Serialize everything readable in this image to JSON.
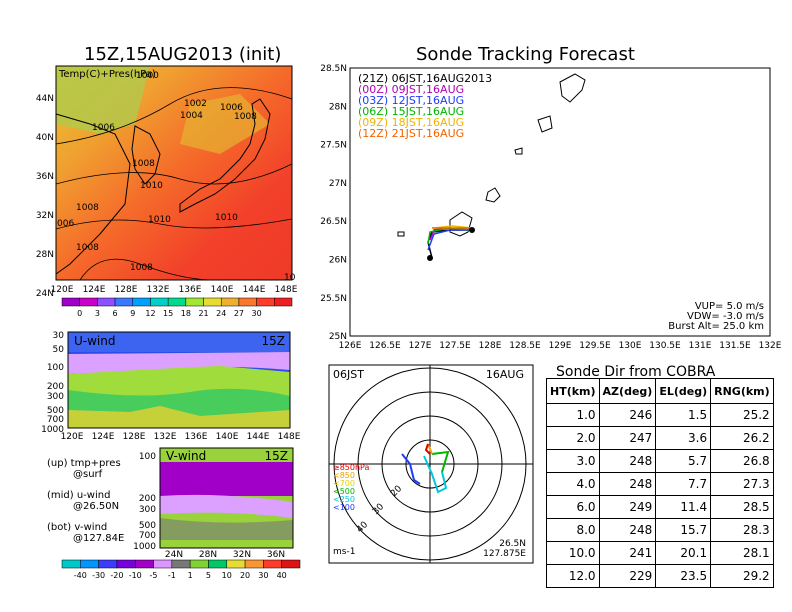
{
  "left": {
    "title": "15Z,15AUG2013 (init)",
    "map_label": "Temp(C)+Pres(hPa)",
    "pressure_labels": [
      "1000",
      "1002",
      "1004",
      "1006",
      "1008",
      "1006",
      "1008",
      "1010",
      "1010",
      "1010",
      "1008",
      "1008",
      "1008",
      "006",
      "10"
    ],
    "lat_ticks": [
      "44N",
      "40N",
      "36N",
      "32N",
      "28N",
      "24N"
    ],
    "lon_ticks": [
      "120E",
      "124E",
      "128E",
      "132E",
      "136E",
      "140E",
      "144E",
      "148E"
    ],
    "temp_colorbar": {
      "labels": [
        "0",
        "3",
        "6",
        "9",
        "12",
        "15",
        "18",
        "21",
        "24",
        "27",
        "30"
      ],
      "colors": [
        "#a000c8",
        "#c800c8",
        "#8c50ff",
        "#3c78ff",
        "#00a0ff",
        "#00d0c8",
        "#00dc8c",
        "#a0e632",
        "#e6dc32",
        "#f0af2d",
        "#fa782d",
        "#ff3c28",
        "#f01e1e"
      ]
    },
    "u_panel": {
      "label": "U-wind",
      "time": "15Z",
      "p_ticks": [
        "30",
        "50",
        "100",
        "200",
        "300",
        "500",
        "700",
        "1000"
      ],
      "lon_ticks": [
        "120E",
        "124E",
        "128E",
        "132E",
        "136E",
        "140E",
        "144E",
        "148E"
      ]
    },
    "v_panel": {
      "label": "V-wind",
      "time": "15Z",
      "p_ticks": [
        "100",
        "200",
        "300",
        "500",
        "700",
        "1000"
      ],
      "lat_ticks": [
        "24N",
        "28N",
        "32N",
        "36N"
      ]
    },
    "legend_text": [
      {
        "line1": "(up) tmp+pres",
        "line2": "@surf"
      },
      {
        "line1": "(mid) u-wind",
        "line2": "@26.50N"
      },
      {
        "line1": "(bot) v-wind",
        "line2": "@127.84E"
      }
    ],
    "wind_colorbar": {
      "labels": [
        "-40",
        "-30",
        "-20",
        "-10",
        "-5",
        "-1",
        "1",
        "5",
        "10",
        "20",
        "30",
        "40"
      ],
      "colors": [
        "#00c8c8",
        "#0096ff",
        "#3c3cff",
        "#7800dc",
        "#a000c8",
        "#dc96ff",
        "#787878",
        "#7fd232",
        "#00c864",
        "#e6dc32",
        "#fa9632",
        "#ff3c28",
        "#dc1414"
      ]
    }
  },
  "track": {
    "title": "Sonde Tracking Forecast",
    "legend": [
      {
        "text": "(21Z)  06JST,16AUG2013",
        "color": "#000000"
      },
      {
        "text": "(00Z)  09JST,16AUG",
        "color": "#b000b0"
      },
      {
        "text": "(03Z)  12JST,16AUG",
        "color": "#1e3cff"
      },
      {
        "text": "(06Z)  15JST,16AUG",
        "color": "#00b400"
      },
      {
        "text": "(09Z)  18JST,16AUG",
        "color": "#f0b400"
      },
      {
        "text": "(12Z)  21JST,16AUG",
        "color": "#f06400"
      }
    ],
    "lat_ticks": [
      "28.5N",
      "28N",
      "27.5N",
      "27N",
      "26.5N",
      "26N",
      "25.5N",
      "25N"
    ],
    "lon_ticks": [
      "126E",
      "126.5E",
      "127E",
      "127.5E",
      "128E",
      "128.5E",
      "129E",
      "129.5E",
      "130E",
      "130.5E",
      "131E",
      "131.5E",
      "132E"
    ],
    "info": [
      "VUP=  5.0  m/s",
      "VDW= -3.0  m/s",
      "Burst Alt=  25.0  km"
    ]
  },
  "polar": {
    "time_label": "06JST",
    "date_label": "16AUG",
    "ring_labels": [
      "20",
      "30",
      "40"
    ],
    "pressure_legend": [
      {
        "text": "≥850hPa",
        "color": "#e60000"
      },
      {
        "text": "<850",
        "color": "#f0a000"
      },
      {
        "text": "<700",
        "color": "#e6d200"
      },
      {
        "text": "<500",
        "color": "#00b400"
      },
      {
        "text": "<250",
        "color": "#00c8dc"
      },
      {
        "text": "<100",
        "color": "#1e3cff"
      }
    ],
    "unit": "ms-1",
    "location_line1": "26.5N",
    "location_line2": "127.875E"
  },
  "chart_data": {
    "type": "table",
    "title": "Sonde Dir from COBRA",
    "columns": [
      "HT(km)",
      "AZ(deg)",
      "EL(deg)",
      "RNG(km)"
    ],
    "rows": [
      [
        "1.0",
        "246",
        "1.5",
        "25.2"
      ],
      [
        "2.0",
        "247",
        "3.6",
        "26.2"
      ],
      [
        "3.0",
        "248",
        "5.7",
        "26.8"
      ],
      [
        "4.0",
        "248",
        "7.7",
        "27.3"
      ],
      [
        "6.0",
        "249",
        "11.4",
        "28.5"
      ],
      [
        "8.0",
        "248",
        "15.7",
        "28.3"
      ],
      [
        "10.0",
        "241",
        "20.1",
        "28.1"
      ],
      [
        "12.0",
        "229",
        "23.5",
        "29.2"
      ]
    ]
  }
}
